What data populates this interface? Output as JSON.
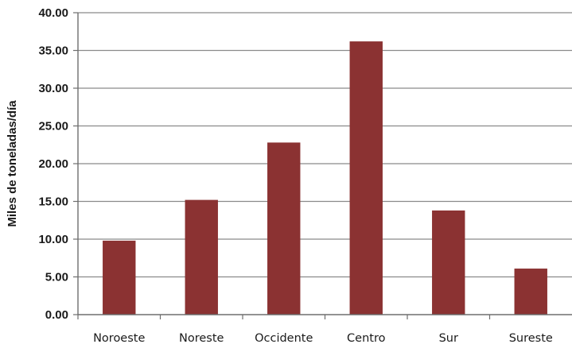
{
  "chart_data": {
    "type": "bar",
    "title": "",
    "xlabel": "",
    "ylabel": "Miles de toneladas/día",
    "ylim": [
      0,
      40
    ],
    "ytick_step": 5,
    "yticks": [
      "0.00",
      "5.00",
      "10.00",
      "15.00",
      "20.00",
      "25.00",
      "30.00",
      "35.00",
      "40.00"
    ],
    "categories": [
      "Noroeste",
      "Noreste",
      "Occidente",
      "Centro",
      "Sur",
      "Sureste"
    ],
    "values": [
      9.8,
      15.2,
      22.8,
      36.2,
      13.8,
      6.1
    ],
    "bar_color": "#8b3232",
    "grid": true,
    "grid_color": "#8a8a8a",
    "legend": "none"
  }
}
